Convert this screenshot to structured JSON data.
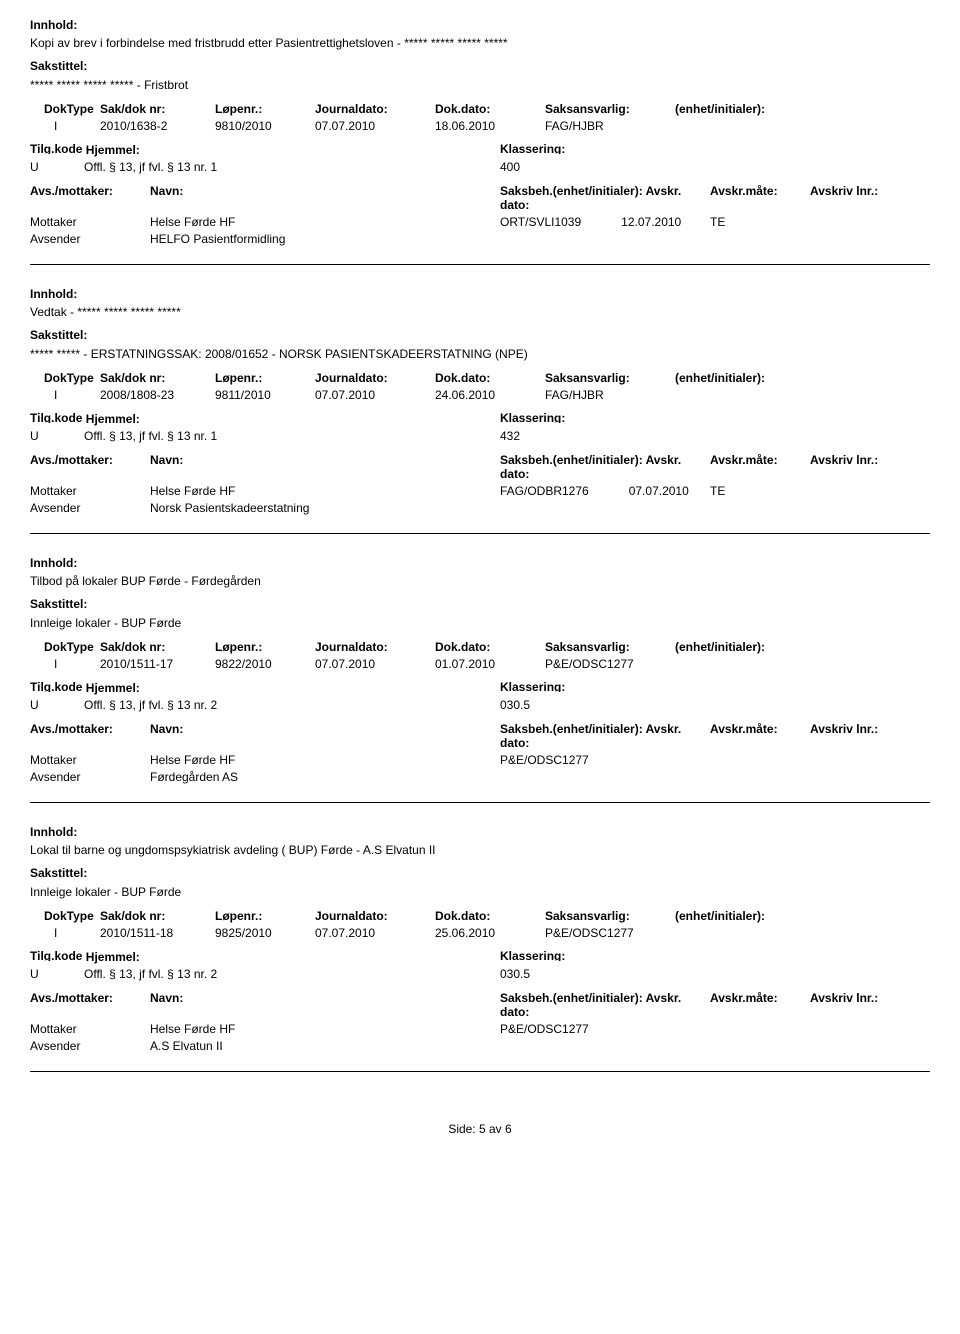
{
  "labels": {
    "innhold": "Innhold:",
    "sakstittel": "Sakstittel:",
    "doktype": "DokType",
    "sakdok": "Sak/dok nr:",
    "lopenr": "Løpenr.:",
    "journaldato": "Journaldato:",
    "dokdato": "Dok.dato:",
    "saksansvarlig": "Saksansvarlig:",
    "enhet": "(enhet/initialer):",
    "tilgkode": "Tilg.kode",
    "hjemmel": "Hjemmel:",
    "klassering": "Klassering:",
    "avsmottaker": "Avs./mottaker:",
    "navn": "Navn:",
    "saksbeh": "Saksbeh.(enhet/initialer): Avskr. dato:",
    "avskrmate": "Avskr.måte:",
    "avskrivlnr": "Avskriv lnr.:"
  },
  "records": [
    {
      "innhold": "Kopi av brev i forbindelse med fristbrudd etter Pasientrettighetsloven - ***** ***** ***** *****",
      "sakstittel": "***** ***** ***** ***** - Fristbrot",
      "doktype": "I",
      "sakdok": "2010/1638-2",
      "lopenr": "9810/2010",
      "journaldato": "07.07.2010",
      "dokdato": "18.06.2010",
      "saksansvarlig": "FAG/HJBR",
      "tilgkode": "U",
      "hjemmel": "Offl. § 13, jf fvl. § 13 nr. 1",
      "klassering": "400",
      "parties": [
        {
          "role": "Mottaker",
          "name": "Helse Førde HF",
          "saksbeh": "ORT/SVLI1039",
          "avskrdato": "12.07.2010",
          "mate": "TE"
        },
        {
          "role": "Avsender",
          "name": "HELFO Pasientformidling",
          "saksbeh": "",
          "avskrdato": "",
          "mate": ""
        }
      ]
    },
    {
      "innhold": "Vedtak - ***** ***** ***** *****",
      "sakstittel": "***** ***** - ERSTATNINGSSAK: 2008/01652 - NORSK PASIENTSKADEERSTATNING (NPE)",
      "doktype": "I",
      "sakdok": "2008/1808-23",
      "lopenr": "9811/2010",
      "journaldato": "07.07.2010",
      "dokdato": "24.06.2010",
      "saksansvarlig": "FAG/HJBR",
      "tilgkode": "U",
      "hjemmel": "Offl. § 13, jf fvl. § 13 nr. 1",
      "klassering": "432",
      "parties": [
        {
          "role": "Mottaker",
          "name": "Helse Førde HF",
          "saksbeh": "FAG/ODBR1276",
          "avskrdato": "07.07.2010",
          "mate": "TE"
        },
        {
          "role": "Avsender",
          "name": "Norsk Pasientskadeerstatning",
          "saksbeh": "",
          "avskrdato": "",
          "mate": ""
        }
      ]
    },
    {
      "innhold": "Tilbod på lokaler BUP Førde - Førdegården",
      "sakstittel": "Innleige lokaler - BUP Førde",
      "doktype": "I",
      "sakdok": "2010/1511-17",
      "lopenr": "9822/2010",
      "journaldato": "07.07.2010",
      "dokdato": "01.07.2010",
      "saksansvarlig": "P&E/ODSC1277",
      "tilgkode": "U",
      "hjemmel": "Offl. § 13, jf fvl. § 13 nr. 2",
      "klassering": "030.5",
      "parties": [
        {
          "role": "Mottaker",
          "name": "Helse Førde HF",
          "saksbeh": "P&E/ODSC1277",
          "avskrdato": "",
          "mate": ""
        },
        {
          "role": "Avsender",
          "name": "Førdegården AS",
          "saksbeh": "",
          "avskrdato": "",
          "mate": ""
        }
      ]
    },
    {
      "innhold": "Lokal til barne og ungdomspsykiatrisk avdeling ( BUP) Førde - A.S Elvatun II",
      "sakstittel": "Innleige lokaler - BUP Førde",
      "doktype": "I",
      "sakdok": "2010/1511-18",
      "lopenr": "9825/2010",
      "journaldato": "07.07.2010",
      "dokdato": "25.06.2010",
      "saksansvarlig": "P&E/ODSC1277",
      "tilgkode": "U",
      "hjemmel": "Offl. § 13, jf fvl. § 13 nr. 2",
      "klassering": "030.5",
      "parties": [
        {
          "role": "Mottaker",
          "name": "Helse Førde HF",
          "saksbeh": "P&E/ODSC1277",
          "avskrdato": "",
          "mate": ""
        },
        {
          "role": "Avsender",
          "name": "A.S Elvatun II",
          "saksbeh": "",
          "avskrdato": "",
          "mate": ""
        }
      ]
    }
  ],
  "footer": "Side: 5 av 6"
}
